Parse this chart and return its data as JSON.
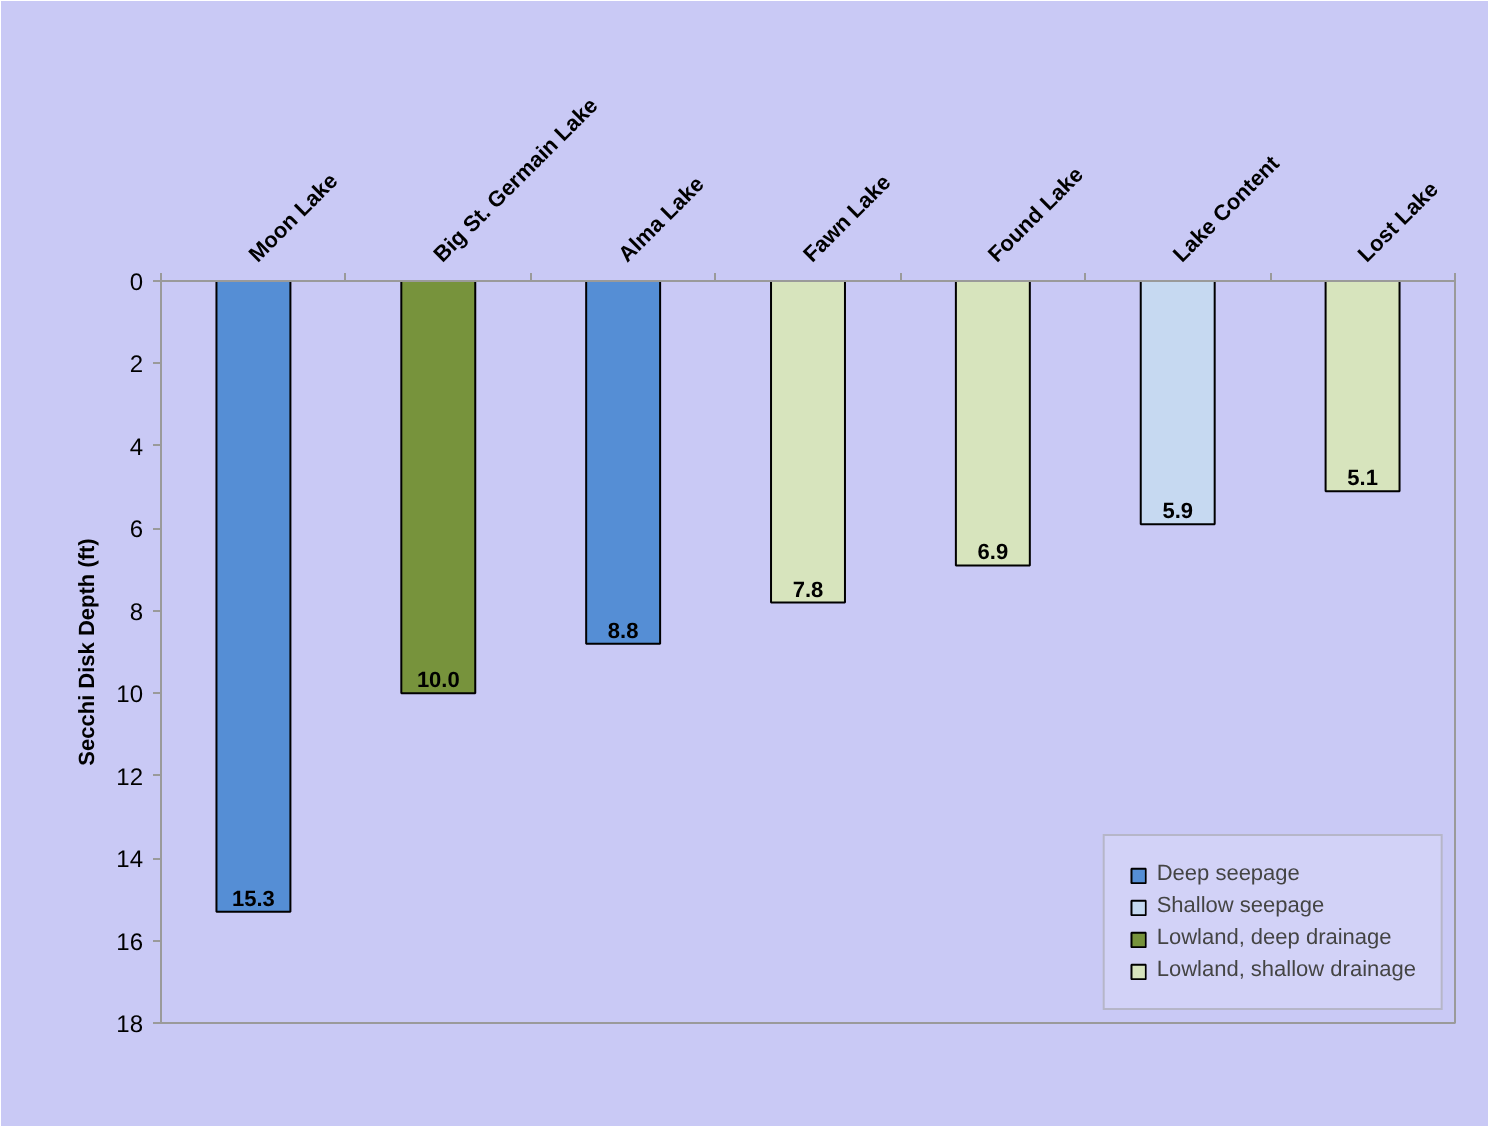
{
  "chart_data": {
    "type": "bar",
    "ylabel": "Secchi Disk Depth (ft)",
    "categories": [
      "Moon Lake",
      "Big St. Germain Lake",
      "Alma Lake",
      "Fawn Lake",
      "Found Lake",
      "Lake Content",
      "Lost Lake"
    ],
    "stacked": true,
    "series": [
      {
        "name": "Deep seepage",
        "color": "#558ed5",
        "values": [
          15.3,
          null,
          8.8,
          null,
          null,
          null,
          null
        ],
        "value_labels": [
          "15.3",
          null,
          "8.8",
          null,
          null,
          null,
          null
        ]
      },
      {
        "name": "Shallow seepage",
        "color": "#c6d9f1",
        "values": [
          null,
          null,
          null,
          null,
          null,
          5.9,
          null
        ],
        "value_labels": [
          null,
          null,
          null,
          null,
          null,
          "5.9",
          null
        ]
      },
      {
        "name": "Lowland, deep drainage",
        "color": "#77933c",
        "values": [
          null,
          10.0,
          null,
          null,
          null,
          null,
          null
        ],
        "value_labels": [
          null,
          "10.0",
          null,
          null,
          null,
          null,
          null
        ]
      },
      {
        "name": "Lowland, shallow drainage",
        "color": "#d7e4bd",
        "values": [
          null,
          null,
          null,
          7.8,
          6.9,
          null,
          5.1
        ],
        "value_labels": [
          null,
          null,
          null,
          "7.8",
          "6.9",
          null,
          "5.1"
        ]
      }
    ],
    "ylim": [
      18,
      0
    ],
    "yticks": [
      0,
      2,
      4,
      6,
      8,
      10,
      12,
      14,
      16,
      18
    ],
    "legend": "bottom right"
  }
}
